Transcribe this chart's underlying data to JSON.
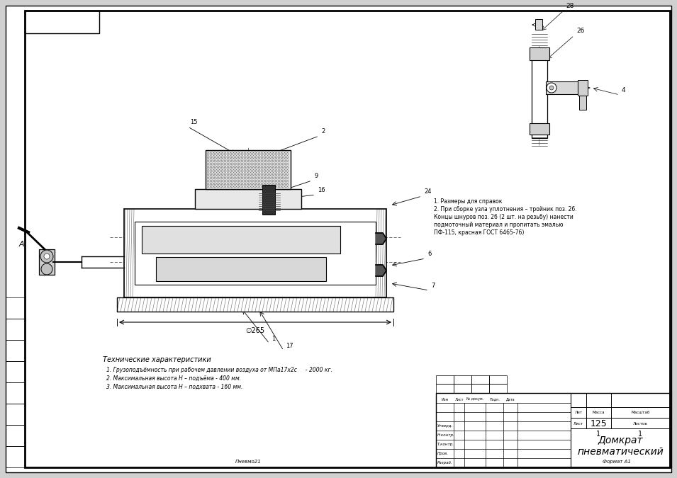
{
  "bg_color": "#d0d0d0",
  "paper_color": "#ffffff",
  "title": "Домкрат\nпневматический",
  "sheet_num": "125",
  "sheet_count": "1 1",
  "tech_title": "Технические характеристики",
  "tech_specs": [
    "1. Грузоподъёмность при рабочем давлении воздуха от МПа17х2с     - 2000 кг.",
    "2. Максимальная высота Н – подъёма - 400 мм.",
    "3. Максимальная высота Н – подхвата - 160 мм."
  ],
  "notes": [
    "1. Размеры для справок",
    "2. При сборке узла уплотнения – тройник поз. 26.",
    "Концы шнуров поз. 26 (2 шт. на резьбу) нанести",
    "подмоточный материал и пропитать эмалью",
    "ПФ-115, красная ГОСТ 6465-76)"
  ],
  "row_labels": [
    "Разраб.",
    "Пров.",
    "Т.контр.",
    "Н.контр.",
    "Утверд."
  ],
  "col_labels": [
    "Лит",
    "Масса",
    "Масштаб"
  ],
  "bottom_left": "Пневмо21",
  "bottom_right": "Формат А1"
}
